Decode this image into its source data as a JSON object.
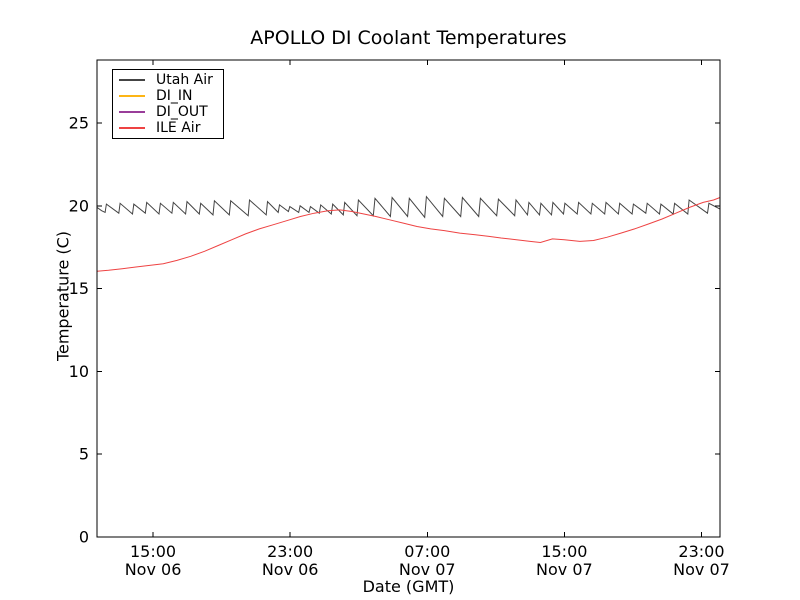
{
  "chart_data": {
    "type": "line",
    "title": "APOLLO DI Coolant Temperatures",
    "xlabel": "Date (GMT)",
    "ylabel": "Temperature (C)",
    "x_unit": "hours since Nov 06 15:00 GMT",
    "xlim": [
      -3.27,
      33.08
    ],
    "ylim": [
      0,
      28.8
    ],
    "grid": false,
    "legend_position": "upper left",
    "axis_color": "#000000",
    "background_color": "#ffffff",
    "xticks": [
      {
        "t": 0,
        "time": "15:00",
        "date": "Nov 06"
      },
      {
        "t": 8,
        "time": "23:00",
        "date": "Nov 06"
      },
      {
        "t": 16,
        "time": "07:00",
        "date": "Nov 07"
      },
      {
        "t": 24,
        "time": "15:00",
        "date": "Nov 07"
      },
      {
        "t": 32,
        "time": "23:00",
        "date": "Nov 07"
      }
    ],
    "yticks": [
      0,
      5,
      10,
      15,
      20,
      25
    ],
    "series": [
      {
        "name": "Utah Air",
        "color": "#444444",
        "points": [
          [
            -3.27,
            19.9
          ],
          [
            -3.0,
            19.7
          ],
          [
            -2.8,
            19.6
          ],
          [
            -2.72,
            20.1
          ],
          [
            -2.0,
            19.55
          ],
          [
            -1.92,
            20.15
          ],
          [
            -1.2,
            19.5
          ],
          [
            -1.12,
            20.1
          ],
          [
            -0.45,
            19.55
          ],
          [
            -0.37,
            20.2
          ],
          [
            0.35,
            19.5
          ],
          [
            0.43,
            20.15
          ],
          [
            1.1,
            19.55
          ],
          [
            1.18,
            20.2
          ],
          [
            1.9,
            19.5
          ],
          [
            1.98,
            20.25
          ],
          [
            2.7,
            19.5
          ],
          [
            2.78,
            20.15
          ],
          [
            3.5,
            19.45
          ],
          [
            3.58,
            20.3
          ],
          [
            4.45,
            19.45
          ],
          [
            4.53,
            20.3
          ],
          [
            5.55,
            19.4
          ],
          [
            5.63,
            20.35
          ],
          [
            6.6,
            19.45
          ],
          [
            6.68,
            20.25
          ],
          [
            7.3,
            19.6
          ],
          [
            7.38,
            20.05
          ],
          [
            7.9,
            19.65
          ],
          [
            7.98,
            19.95
          ],
          [
            8.5,
            19.6
          ],
          [
            8.58,
            20.0
          ],
          [
            9.1,
            19.6
          ],
          [
            9.18,
            19.95
          ],
          [
            9.7,
            19.55
          ],
          [
            9.78,
            20.05
          ],
          [
            10.4,
            19.5
          ],
          [
            10.48,
            20.1
          ],
          [
            11.1,
            19.45
          ],
          [
            11.18,
            20.2
          ],
          [
            11.9,
            19.4
          ],
          [
            11.98,
            20.35
          ],
          [
            12.85,
            19.4
          ],
          [
            12.95,
            20.45
          ],
          [
            13.85,
            19.35
          ],
          [
            13.95,
            20.5
          ],
          [
            14.85,
            19.35
          ],
          [
            14.95,
            20.45
          ],
          [
            15.85,
            19.3
          ],
          [
            15.95,
            20.55
          ],
          [
            16.9,
            19.35
          ],
          [
            17.0,
            20.45
          ],
          [
            17.95,
            19.35
          ],
          [
            18.05,
            20.5
          ],
          [
            19.0,
            19.35
          ],
          [
            19.1,
            20.45
          ],
          [
            20.05,
            19.4
          ],
          [
            20.15,
            20.4
          ],
          [
            21.1,
            19.4
          ],
          [
            21.18,
            20.35
          ],
          [
            21.85,
            19.45
          ],
          [
            21.93,
            20.2
          ],
          [
            22.55,
            19.45
          ],
          [
            22.63,
            20.15
          ],
          [
            23.25,
            19.45
          ],
          [
            23.33,
            20.2
          ],
          [
            23.95,
            19.5
          ],
          [
            24.03,
            20.15
          ],
          [
            24.75,
            19.5
          ],
          [
            24.83,
            20.2
          ],
          [
            25.55,
            19.5
          ],
          [
            25.63,
            20.15
          ],
          [
            26.35,
            19.5
          ],
          [
            26.43,
            20.2
          ],
          [
            27.15,
            19.5
          ],
          [
            27.23,
            20.15
          ],
          [
            27.95,
            19.5
          ],
          [
            28.03,
            20.1
          ],
          [
            28.75,
            19.55
          ],
          [
            28.83,
            20.15
          ],
          [
            29.55,
            19.5
          ],
          [
            29.63,
            20.1
          ],
          [
            30.35,
            19.5
          ],
          [
            30.43,
            20.15
          ],
          [
            31.2,
            19.5
          ],
          [
            31.28,
            20.35
          ],
          [
            32.35,
            19.55
          ],
          [
            32.43,
            20.15
          ],
          [
            33.08,
            19.8
          ]
        ]
      },
      {
        "name": "DI_IN",
        "color": "#fdb515",
        "points": [
          [
            -3.27,
            0
          ],
          [
            33.08,
            0
          ]
        ]
      },
      {
        "name": "DI_OUT",
        "color": "#993d99",
        "points": [
          [
            -3.27,
            0
          ],
          [
            33.08,
            0
          ]
        ]
      },
      {
        "name": "ILE Air",
        "color": "#ee4343",
        "points": [
          [
            -3.27,
            16.05
          ],
          [
            -2.6,
            16.1
          ],
          [
            -1.8,
            16.2
          ],
          [
            -1.0,
            16.3
          ],
          [
            -0.2,
            16.4
          ],
          [
            0.6,
            16.5
          ],
          [
            1.4,
            16.7
          ],
          [
            2.2,
            16.95
          ],
          [
            3.0,
            17.25
          ],
          [
            3.8,
            17.6
          ],
          [
            4.6,
            17.95
          ],
          [
            5.4,
            18.3
          ],
          [
            6.2,
            18.6
          ],
          [
            7.0,
            18.85
          ],
          [
            7.8,
            19.1
          ],
          [
            8.6,
            19.35
          ],
          [
            9.4,
            19.55
          ],
          [
            10.2,
            19.7
          ],
          [
            10.9,
            19.75
          ],
          [
            11.6,
            19.65
          ],
          [
            12.3,
            19.5
          ],
          [
            13.0,
            19.35
          ],
          [
            13.8,
            19.15
          ],
          [
            14.6,
            18.95
          ],
          [
            15.4,
            18.75
          ],
          [
            16.2,
            18.6
          ],
          [
            17.0,
            18.5
          ],
          [
            17.9,
            18.35
          ],
          [
            18.8,
            18.25
          ],
          [
            19.6,
            18.15
          ],
          [
            20.3,
            18.05
          ],
          [
            21.2,
            17.95
          ],
          [
            22.0,
            17.85
          ],
          [
            22.6,
            17.78
          ],
          [
            23.3,
            18.0
          ],
          [
            24.0,
            17.95
          ],
          [
            24.9,
            17.85
          ],
          [
            25.7,
            17.9
          ],
          [
            26.5,
            18.1
          ],
          [
            27.3,
            18.35
          ],
          [
            28.1,
            18.6
          ],
          [
            28.9,
            18.9
          ],
          [
            29.7,
            19.2
          ],
          [
            30.5,
            19.55
          ],
          [
            31.3,
            19.9
          ],
          [
            32.1,
            20.2
          ],
          [
            32.7,
            20.35
          ],
          [
            33.08,
            20.5
          ]
        ]
      }
    ]
  }
}
